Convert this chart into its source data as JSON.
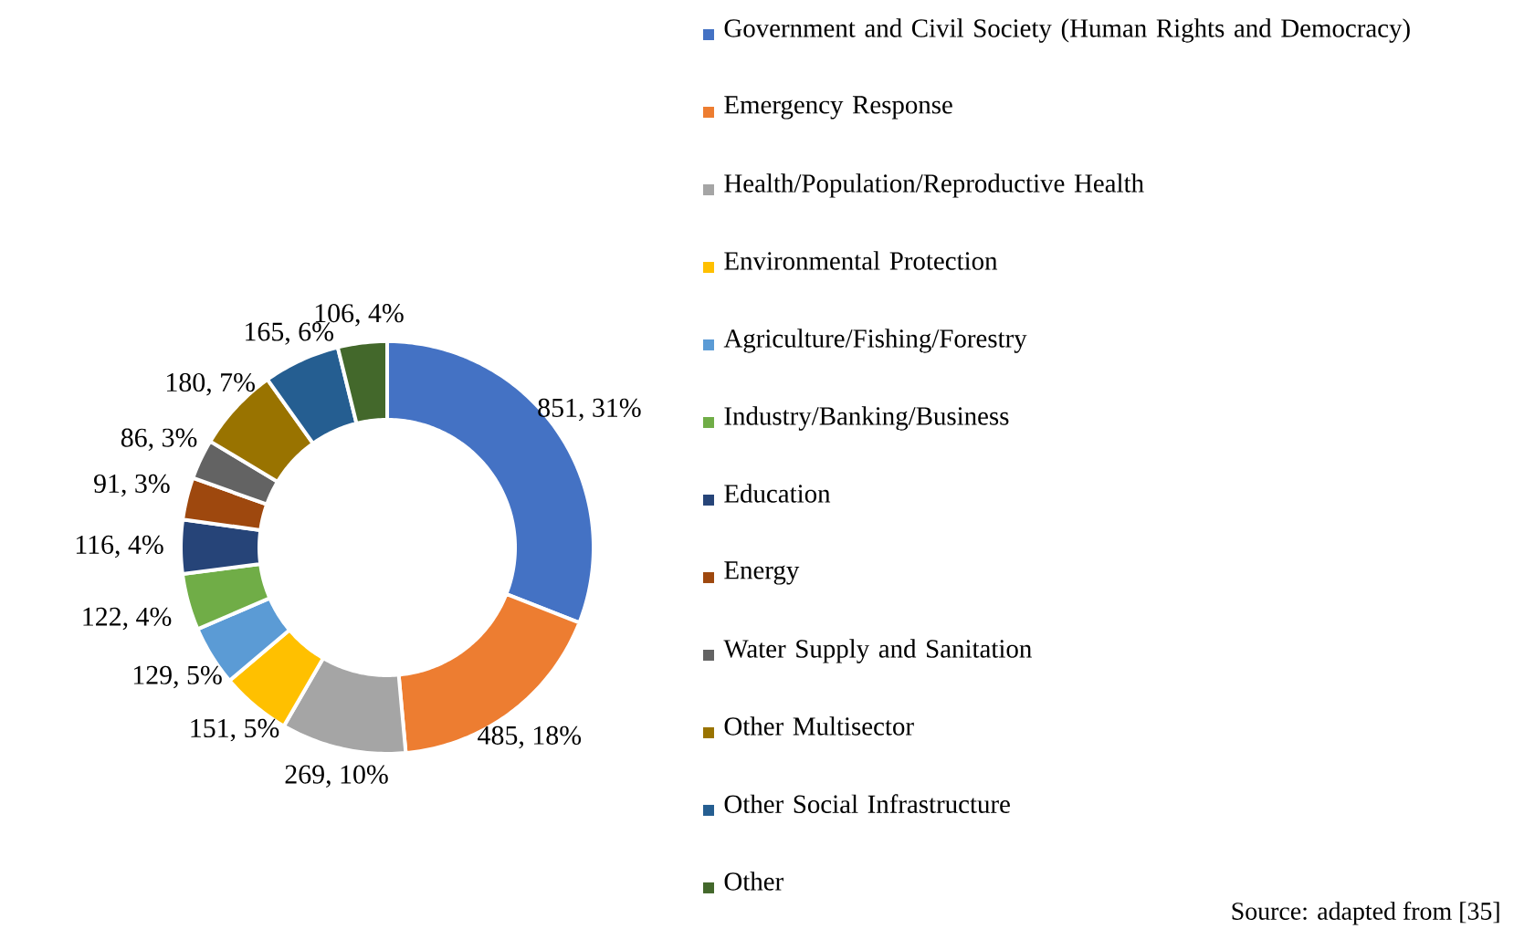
{
  "chart_data": {
    "type": "donut",
    "categories": [
      "Government and Civil Society (Human Rights and Democracy)",
      "Emergency Response",
      "Health/Population/Reproductive Health",
      "Environmental Protection",
      "Agriculture/Fishing/Forestry",
      "Industry/Banking/Business",
      "Education",
      "Energy",
      "Water Supply and Sanitation",
      "Other Multisector",
      "Other Social Infrastructure",
      "Other"
    ],
    "values": [
      851,
      485,
      269,
      151,
      129,
      122,
      116,
      91,
      86,
      180,
      165,
      106
    ],
    "value_labels": [
      "851, 31%",
      "485, 18%",
      "269, 10%",
      "151, 5%",
      "129, 5%",
      "122, 4%",
      "116, 4%",
      "91, 3%",
      "86, 3%",
      "180, 7%",
      "165, 6%",
      "106, 4%"
    ],
    "colors": [
      "#4472c4",
      "#ed7d31",
      "#a5a5a5",
      "#ffc000",
      "#5b9bd5",
      "#70ad47",
      "#264478",
      "#9e480e",
      "#636363",
      "#997300",
      "#255e91",
      "#43682b"
    ],
    "legend": "right",
    "annotations": [
      "Source: adapted from [35]"
    ]
  }
}
